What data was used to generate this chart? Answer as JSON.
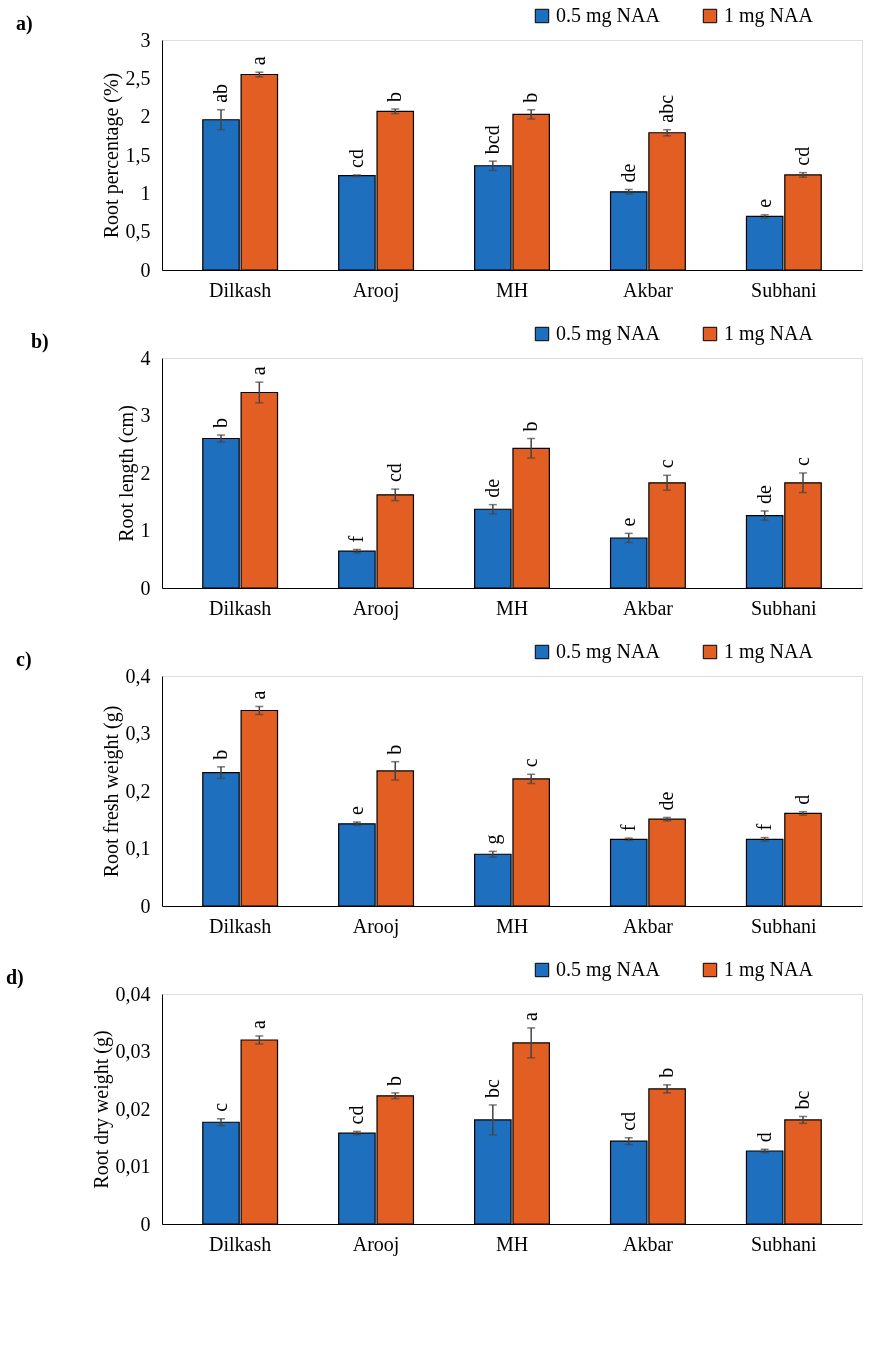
{
  "chart_data": [
    {
      "type": "bar",
      "title": "a)",
      "ylabel": "Root percentage (%)",
      "categories": [
        "Dilkash",
        "Arooj",
        "MH",
        "Akbar",
        "Subhani"
      ],
      "legend": "top right",
      "grid": false,
      "ylim": [
        0,
        3
      ],
      "yticks": [
        0,
        {
          "value": 0.5,
          "label": "0,5"
        },
        1,
        {
          "value": 1.5,
          "label": "1,5"
        },
        2,
        {
          "value": 2.5,
          "label": "2,5"
        },
        3
      ],
      "series": [
        {
          "name": "0.5 mg NAA",
          "color": "#1f6fbf",
          "values": [
            1.96,
            1.23,
            1.36,
            1.02,
            0.7
          ],
          "errors": [
            0.13,
            0.01,
            0.06,
            0.03,
            0.02
          ],
          "value_labels": [
            "ab",
            "cd",
            "bcd",
            "de",
            "e"
          ]
        },
        {
          "name": "1 mg NAA",
          "color": "#e35e22",
          "values": [
            2.55,
            2.07,
            2.03,
            1.79,
            1.24
          ],
          "errors": [
            0.03,
            0.03,
            0.06,
            0.04,
            0.03
          ],
          "value_labels": [
            "a",
            "b",
            "b",
            "abc",
            "cd"
          ]
        }
      ]
    },
    {
      "type": "bar",
      "title": "b)",
      "ylabel": "Root length (cm)",
      "categories": [
        "Dilkash",
        "Arooj",
        "MH",
        "Akbar",
        "Subhani"
      ],
      "legend": "top right",
      "grid": false,
      "ylim": [
        0,
        4
      ],
      "yticks": [
        0,
        1,
        2,
        3,
        4
      ],
      "series": [
        {
          "name": "0.5 mg NAA",
          "color": "#1f6fbf",
          "values": [
            2.6,
            0.64,
            1.37,
            0.87,
            1.26
          ],
          "errors": [
            0.06,
            0.03,
            0.08,
            0.08,
            0.08
          ],
          "value_labels": [
            "b",
            "f",
            "de",
            "e",
            "de"
          ]
        },
        {
          "name": "1 mg NAA",
          "color": "#e35e22",
          "values": [
            3.4,
            1.62,
            2.43,
            1.83,
            1.83
          ],
          "errors": [
            0.18,
            0.1,
            0.17,
            0.13,
            0.17
          ],
          "value_labels": [
            "a",
            "cd",
            "b",
            "c",
            "c"
          ]
        }
      ]
    },
    {
      "type": "bar",
      "title": "c)",
      "ylabel": "Root fresh weight (g)",
      "categories": [
        "Dilkash",
        "Arooj",
        "MH",
        "Akbar",
        "Subhani"
      ],
      "legend": "top right",
      "grid": false,
      "ylim": [
        0,
        0.4
      ],
      "yticks": [
        0,
        {
          "value": 0.1,
          "label": "0,1"
        },
        {
          "value": 0.2,
          "label": "0,2"
        },
        {
          "value": 0.3,
          "label": "0,3"
        },
        {
          "value": 0.4,
          "label": "0,4"
        }
      ],
      "series": [
        {
          "name": "0.5 mg NAA",
          "color": "#1f6fbf",
          "values": [
            0.232,
            0.143,
            0.09,
            0.116,
            0.116
          ],
          "errors": [
            0.01,
            0.003,
            0.005,
            0.002,
            0.003
          ],
          "value_labels": [
            "b",
            "e",
            "g",
            "f",
            "f"
          ]
        },
        {
          "name": "1 mg NAA",
          "color": "#e35e22",
          "values": [
            0.34,
            0.235,
            0.221,
            0.151,
            0.161
          ],
          "errors": [
            0.007,
            0.016,
            0.008,
            0.003,
            0.003
          ],
          "value_labels": [
            "a",
            "b",
            "c",
            "de",
            "d"
          ]
        }
      ]
    },
    {
      "type": "bar",
      "title": "d)",
      "ylabel": "Root dry weight (g)",
      "categories": [
        "Dilkash",
        "Arooj",
        "MH",
        "Akbar",
        "Subhani"
      ],
      "legend": "top right",
      "grid": false,
      "ylim": [
        0,
        0.04
      ],
      "yticks": [
        0,
        {
          "value": 0.01,
          "label": "0,01"
        },
        {
          "value": 0.02,
          "label": "0,02"
        },
        {
          "value": 0.03,
          "label": "0,03"
        },
        {
          "value": 0.04,
          "label": "0,04"
        }
      ],
      "series": [
        {
          "name": "0.5 mg NAA",
          "color": "#1f6fbf",
          "values": [
            0.0177,
            0.0158,
            0.0181,
            0.0144,
            0.0127
          ],
          "errors": [
            0.0006,
            0.0003,
            0.0026,
            0.0006,
            0.0003
          ],
          "value_labels": [
            "c",
            "cd",
            "bc",
            "cd",
            "d"
          ]
        },
        {
          "name": "1 mg NAA",
          "color": "#e35e22",
          "values": [
            0.032,
            0.0223,
            0.0315,
            0.0235,
            0.0181
          ],
          "errors": [
            0.0007,
            0.0005,
            0.0026,
            0.0007,
            0.0006
          ],
          "value_labels": [
            "a",
            "b",
            "a",
            "b",
            "bc"
          ]
        }
      ]
    }
  ]
}
